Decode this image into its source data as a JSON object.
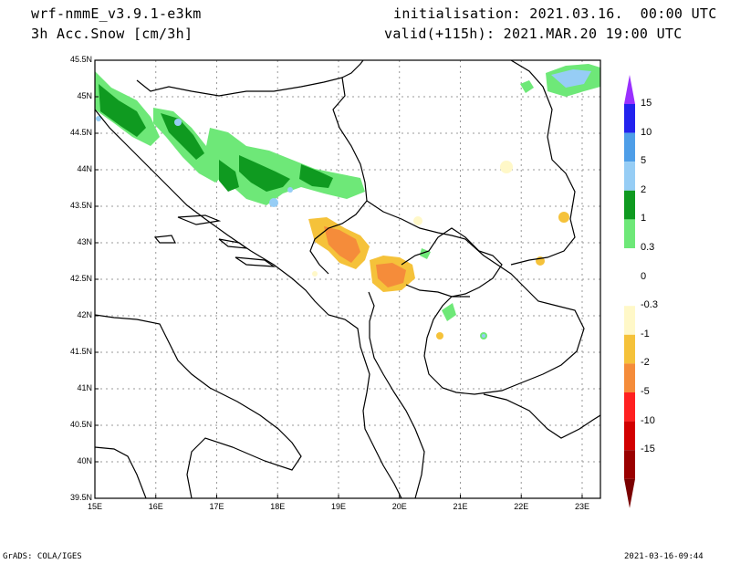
{
  "header": {
    "model": "wrf-nmmE_v3.9.1-e3km",
    "field": "3h Acc.Snow [cm/3h]",
    "init": "initialisation: 2021.03.16.  00:00 UTC",
    "valid": "valid(+115h): 2021.MAR.20 19:00 UTC"
  },
  "footer": {
    "credit": "GrADS: COLA/IGES",
    "timestamp": "2021-03-16-09:44"
  },
  "map": {
    "lat_labels": [
      "45.5N",
      "45N",
      "44.5N",
      "44N",
      "43.5N",
      "43N",
      "42.5N",
      "42N",
      "41.5N",
      "41N",
      "40.5N",
      "40N",
      "39.5N"
    ],
    "lon_labels": [
      "15E",
      "16E",
      "17E",
      "18E",
      "19E",
      "20E",
      "21E",
      "22E",
      "23E"
    ],
    "lat_values": [
      45.5,
      45,
      44.5,
      44,
      43.5,
      43,
      42.5,
      42,
      41.5,
      41,
      40.5,
      40,
      39.5
    ],
    "lon_values": [
      15,
      16,
      17,
      18,
      19,
      20,
      21,
      22,
      23
    ]
  },
  "colorbar": {
    "labels": [
      "15",
      "10",
      "5",
      "2",
      "1",
      "0.3",
      "0",
      "-0.3",
      "-1",
      "-2",
      "-5",
      "-10",
      "-15"
    ],
    "colors": [
      "#2222ee",
      "#4e9ee8",
      "#96cdf5",
      "#0f9a20",
      "#6ee878",
      "#ffffff",
      "#ffffff",
      "#fff8c8",
      "#f5c23a",
      "#f58c3a",
      "#ff2020",
      "#d20000",
      "#9a0000"
    ],
    "top_arrow_color": "#9a30ff",
    "bottom_arrow_color": "#7a0000"
  }
}
